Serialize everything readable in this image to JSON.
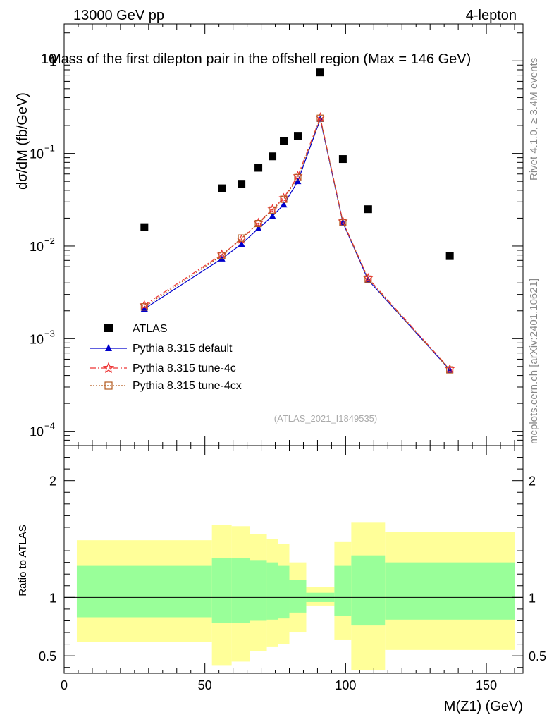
{
  "header": {
    "left": "13000 GeV pp",
    "right": "4-lepton",
    "title": "Mass of the first dilepton pair in the offshell region (Max = 146 GeV)",
    "title_overlap_prefix": "10"
  },
  "side_labels": {
    "rivet": "Rivet 4.1.0, ≥ 3.4M events",
    "mcplots": "mcplots.cern.ch [arXiv:2401.10621]"
  },
  "watermark": "(ATLAS_2021_I1849535)",
  "legend": {
    "atlas": "ATLAS",
    "default": "Pythia 8.315 default",
    "tune4c": "Pythia 8.315 tune-4c",
    "tune4cx": "Pythia 8.315 tune-4cx"
  },
  "colors": {
    "atlas": "#000000",
    "default": "#0000cc",
    "tune4c": "#ee3333",
    "tune4cx": "#b35a1f",
    "band_inner": "#99ff99",
    "band_outer": "#ffff99"
  },
  "chart_data": {
    "type": "line",
    "xlabel": "M(Z1) (GeV)",
    "ylabel_main": "dσ/dM (fb/GeV)",
    "ylabel_ratio": "Ratio to ATLAS",
    "xlim": [
      0,
      163
    ],
    "ylim_main": [
      7e-05,
      2.5
    ],
    "ylim_ratio": [
      0.35,
      2.3
    ],
    "main_yticks": [
      {
        "value": 0.0001,
        "base": "10",
        "exp": "−4"
      },
      {
        "value": 0.001,
        "base": "10",
        "exp": "−3"
      },
      {
        "value": 0.01,
        "base": "10",
        "exp": "−2"
      },
      {
        "value": 0.1,
        "base": "10",
        "exp": "−1"
      },
      {
        "value": 1,
        "base": "1",
        "exp": ""
      }
    ],
    "ratio_yticks": [
      {
        "value": 0.5,
        "label": "0.5"
      },
      {
        "value": 1,
        "label": "1"
      },
      {
        "value": 2,
        "label": "2"
      }
    ],
    "xticks": [
      {
        "value": 0,
        "label": "0"
      },
      {
        "value": 50,
        "label": "50"
      },
      {
        "value": 100,
        "label": "100"
      },
      {
        "value": 150,
        "label": "150"
      }
    ],
    "atlas": {
      "name": "ATLAS",
      "x": [
        28.5,
        56,
        63,
        69,
        74,
        78,
        83,
        91,
        99,
        108,
        137
      ],
      "y": [
        0.016,
        0.042,
        0.047,
        0.07,
        0.093,
        0.135,
        0.155,
        0.75,
        0.087,
        0.025,
        0.0078
      ]
    },
    "series": [
      {
        "name": "Pythia 8.315 default",
        "key": "default",
        "marker": "triangle",
        "dash": "",
        "x": [
          28.5,
          56,
          63,
          69,
          74,
          78,
          83,
          91,
          99,
          108,
          137
        ],
        "y": [
          0.0021,
          0.0073,
          0.0105,
          0.0155,
          0.021,
          0.028,
          0.05,
          0.235,
          0.018,
          0.0043,
          0.00046
        ]
      },
      {
        "name": "Pythia 8.315 tune-4c",
        "key": "tune4c",
        "marker": "star",
        "dash": "8,3,2,3",
        "x": [
          28.5,
          56,
          63,
          69,
          74,
          78,
          83,
          91,
          99,
          108,
          137
        ],
        "y": [
          0.0023,
          0.0081,
          0.0118,
          0.0178,
          0.025,
          0.033,
          0.057,
          0.245,
          0.0185,
          0.0045,
          0.00047
        ]
      },
      {
        "name": "Pythia 8.315 tune-4cx",
        "key": "tune4cx",
        "marker": "square",
        "dash": "2,2",
        "x": [
          28.5,
          56,
          63,
          69,
          74,
          78,
          83,
          91,
          99,
          108,
          137
        ],
        "y": [
          0.0022,
          0.0079,
          0.0122,
          0.0175,
          0.0245,
          0.032,
          0.055,
          0.24,
          0.018,
          0.0044,
          0.00046
        ]
      }
    ],
    "ratio_bands": [
      {
        "x0": 4.5,
        "x1": 52.5,
        "inner_lo": 0.83,
        "inner_hi": 1.27,
        "outer_lo": 0.62,
        "outer_hi": 1.49
      },
      {
        "x0": 52.5,
        "x1": 59.5,
        "inner_lo": 0.78,
        "inner_hi": 1.34,
        "outer_lo": 0.42,
        "outer_hi": 1.62
      },
      {
        "x0": 59.5,
        "x1": 66,
        "inner_lo": 0.78,
        "inner_hi": 1.34,
        "outer_lo": 0.45,
        "outer_hi": 1.61
      },
      {
        "x0": 66,
        "x1": 72,
        "inner_lo": 0.8,
        "inner_hi": 1.32,
        "outer_lo": 0.54,
        "outer_hi": 1.54
      },
      {
        "x0": 72,
        "x1": 76,
        "inner_lo": 0.81,
        "inner_hi": 1.3,
        "outer_lo": 0.58,
        "outer_hi": 1.5
      },
      {
        "x0": 76,
        "x1": 80,
        "inner_lo": 0.82,
        "inner_hi": 1.27,
        "outer_lo": 0.6,
        "outer_hi": 1.46
      },
      {
        "x0": 80,
        "x1": 86,
        "inner_lo": 0.87,
        "inner_hi": 1.15,
        "outer_lo": 0.7,
        "outer_hi": 1.3
      },
      {
        "x0": 86,
        "x1": 96,
        "inner_lo": 0.96,
        "inner_hi": 1.04,
        "outer_lo": 0.93,
        "outer_hi": 1.09
      },
      {
        "x0": 96,
        "x1": 102,
        "inner_lo": 0.84,
        "inner_hi": 1.27,
        "outer_lo": 0.64,
        "outer_hi": 1.48
      },
      {
        "x0": 102,
        "x1": 114,
        "inner_lo": 0.76,
        "inner_hi": 1.36,
        "outer_lo": 0.38,
        "outer_hi": 1.64
      },
      {
        "x0": 114,
        "x1": 160,
        "inner_lo": 0.81,
        "inner_hi": 1.3,
        "outer_lo": 0.55,
        "outer_hi": 1.56
      }
    ]
  }
}
